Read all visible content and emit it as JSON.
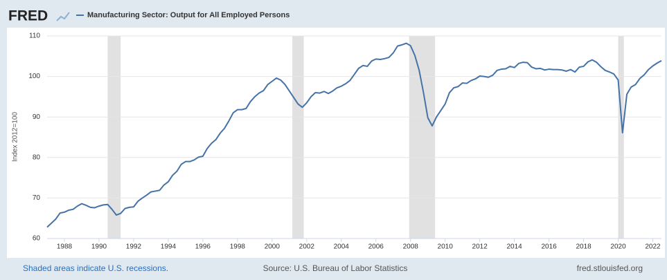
{
  "logo": "FRED",
  "footer": {
    "note": "Shaded areas indicate U.S. recessions.",
    "source": "Source: U.S. Bureau of Labor Statistics",
    "site": "fred.stlouisfed.org"
  },
  "chart_data": {
    "type": "line",
    "ylabel": "Index 2012=100",
    "series": [
      {
        "name": "Manufacturing Sector: Output for All Employed Persons",
        "color": "#4572a7",
        "x": [
          1987,
          1987.25,
          1987.5,
          1987.75,
          1988,
          1988.25,
          1988.5,
          1988.75,
          1989,
          1989.25,
          1989.5,
          1989.75,
          1990,
          1990.25,
          1990.5,
          1990.75,
          1991,
          1991.25,
          1991.5,
          1991.75,
          1992,
          1992.25,
          1992.5,
          1992.75,
          1993,
          1993.25,
          1993.5,
          1993.75,
          1994,
          1994.25,
          1994.5,
          1994.75,
          1995,
          1995.25,
          1995.5,
          1995.75,
          1996,
          1996.25,
          1996.5,
          1996.75,
          1997,
          1997.25,
          1997.5,
          1997.75,
          1998,
          1998.25,
          1998.5,
          1998.75,
          1999,
          1999.25,
          1999.5,
          1999.75,
          2000,
          2000.25,
          2000.5,
          2000.75,
          2001,
          2001.25,
          2001.5,
          2001.75,
          2002,
          2002.25,
          2002.5,
          2002.75,
          2003,
          2003.25,
          2003.5,
          2003.75,
          2004,
          2004.25,
          2004.5,
          2004.75,
          2005,
          2005.25,
          2005.5,
          2005.75,
          2006,
          2006.25,
          2006.5,
          2006.75,
          2007,
          2007.25,
          2007.5,
          2007.75,
          2008,
          2008.25,
          2008.5,
          2008.75,
          2009,
          2009.25,
          2009.5,
          2009.75,
          2010,
          2010.25,
          2010.5,
          2010.75,
          2011,
          2011.25,
          2011.5,
          2011.75,
          2012,
          2012.25,
          2012.5,
          2012.75,
          2013,
          2013.25,
          2013.5,
          2013.75,
          2014,
          2014.25,
          2014.5,
          2014.75,
          2015,
          2015.25,
          2015.5,
          2015.75,
          2016,
          2016.25,
          2016.5,
          2016.75,
          2017,
          2017.25,
          2017.5,
          2017.75,
          2018,
          2018.25,
          2018.5,
          2018.75,
          2019,
          2019.25,
          2019.5,
          2019.75,
          2020,
          2020.25,
          2020.5,
          2020.75,
          2021,
          2021.25,
          2021.5,
          2021.75,
          2022,
          2022.25,
          2022.5
        ],
        "values": [
          62.8,
          63.8,
          64.8,
          66.3,
          66.5,
          67,
          67.2,
          68,
          68.6,
          68.2,
          67.7,
          67.6,
          68,
          68.3,
          68.4,
          67.2,
          65.8,
          66.2,
          67.4,
          67.7,
          67.8,
          69.2,
          70,
          70.7,
          71.5,
          71.7,
          71.9,
          73.2,
          74,
          75.6,
          76.6,
          78.3,
          79,
          79,
          79.4,
          80.1,
          80.3,
          82.2,
          83.5,
          84.4,
          86,
          87.2,
          89,
          91,
          91.8,
          91.8,
          92.1,
          93.8,
          95,
          95.9,
          96.5,
          98,
          98.8,
          99.6,
          99.1,
          98,
          96.4,
          94.8,
          93.2,
          92.4,
          93.5,
          95,
          96,
          95.9,
          96.3,
          95.8,
          96.4,
          97.2,
          97.6,
          98.2,
          99,
          100.5,
          102,
          102.7,
          102.5,
          103.8,
          104.3,
          104.2,
          104.4,
          104.7,
          105.8,
          107.5,
          107.8,
          108.2,
          107.6,
          105.2,
          101.5,
          96,
          89.8,
          87.8,
          90,
          91.6,
          93.2,
          96,
          97.2,
          97.5,
          98.4,
          98.3,
          99,
          99.4,
          100.1,
          100,
          99.8,
          100.3,
          101.5,
          101.8,
          101.9,
          102.5,
          102.2,
          103.2,
          103.5,
          103.4,
          102.3,
          101.9,
          102,
          101.6,
          101.8,
          101.7,
          101.7,
          101.6,
          101.3,
          101.7,
          101.1,
          102.3,
          102.5,
          103.6,
          104.1,
          103.5,
          102.4,
          101.5,
          101.1,
          100.6,
          99.1,
          86.1,
          95.6,
          97.4,
          98,
          99.5,
          100.4,
          101.7,
          102.6,
          103.3,
          103.9
        ]
      }
    ],
    "recessions": [
      [
        1990.5,
        1991.25
      ],
      [
        2001.17,
        2001.83
      ],
      [
        2007.92,
        2009.42
      ],
      [
        2020,
        2020.33
      ]
    ],
    "recession_color": "#e1e1e1",
    "xlim": [
      1987,
      2022.5
    ],
    "xticks": [
      1988,
      1990,
      1992,
      1994,
      1996,
      1998,
      2000,
      2002,
      2004,
      2006,
      2008,
      2010,
      2012,
      2014,
      2016,
      2018,
      2020,
      2022
    ],
    "ylim": [
      60,
      110
    ],
    "yticks": [
      60,
      70,
      80,
      90,
      100,
      110
    ],
    "grid": true
  }
}
